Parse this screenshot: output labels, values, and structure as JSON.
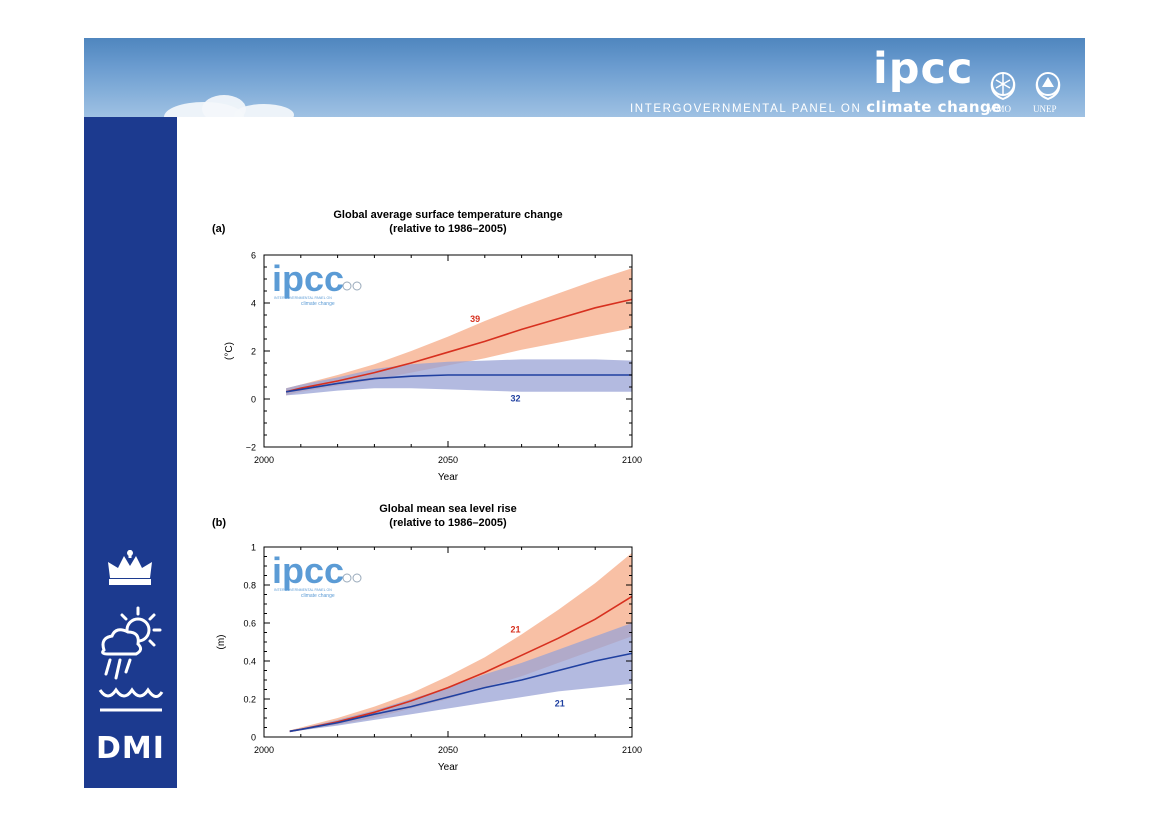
{
  "header": {
    "logo_text": "ipcc",
    "subtitle_small": "INTERGOVERNMENTAL PANEL ON",
    "subtitle_big": "climate change",
    "emblem_left_label": "WMO",
    "emblem_right_label": "UNEP"
  },
  "sidebar": {
    "logo_text": "DMI",
    "icons": [
      "crown-icon",
      "weather-icon",
      "waves-icon"
    ]
  },
  "watermark": {
    "logo_text": "ipcc",
    "subtitle_line1": "INTERGOVERNMENTAL PANEL ON",
    "subtitle_line2": "climate change"
  },
  "colors": {
    "banner": "#5b8fc7",
    "sidebar": "#1c3a8f",
    "red_line": "#d7301f",
    "red_band": "#f6b08f",
    "blue_line": "#2040a0",
    "blue_band": "#9aa3d6",
    "watermark": "#5b9bd5"
  },
  "chart_data": [
    {
      "type": "line",
      "panel_label": "(a)",
      "title": "Global average surface temperature change",
      "subtitle": "(relative to 1986–2005)",
      "xlabel": "Year",
      "ylabel": "(°C)",
      "xlim": [
        2000,
        2100
      ],
      "ylim": [
        -2,
        6
      ],
      "xticks": [
        2000,
        2050,
        2100
      ],
      "yticks": [
        -2,
        0,
        2,
        4,
        6
      ],
      "ytick_labels": [
        "−2",
        "0",
        "2",
        "4",
        "6"
      ],
      "x": [
        2006,
        2010,
        2020,
        2030,
        2040,
        2050,
        2060,
        2070,
        2080,
        2090,
        2100
      ],
      "series": [
        {
          "label": "39",
          "color": "#d7301f",
          "band_color": "#f6b08f",
          "mean": [
            0.3,
            0.45,
            0.75,
            1.1,
            1.5,
            1.95,
            2.4,
            2.9,
            3.35,
            3.8,
            4.15
          ],
          "upper": [
            0.45,
            0.6,
            1.0,
            1.45,
            2.0,
            2.6,
            3.25,
            3.85,
            4.4,
            4.95,
            5.45
          ],
          "lower": [
            0.15,
            0.3,
            0.55,
            0.8,
            1.1,
            1.4,
            1.7,
            2.05,
            2.35,
            2.65,
            2.95
          ]
        },
        {
          "label": "32",
          "color": "#2040a0",
          "band_color": "#9aa3d6",
          "mean": [
            0.3,
            0.4,
            0.65,
            0.85,
            0.95,
            1.0,
            1.0,
            1.0,
            1.0,
            1.0,
            1.0
          ],
          "upper": [
            0.45,
            0.6,
            0.9,
            1.25,
            1.45,
            1.55,
            1.6,
            1.65,
            1.65,
            1.65,
            1.6
          ],
          "lower": [
            0.15,
            0.2,
            0.35,
            0.45,
            0.45,
            0.4,
            0.35,
            0.3,
            0.3,
            0.3,
            0.3
          ]
        }
      ]
    },
    {
      "type": "line",
      "panel_label": "(b)",
      "title": "Global mean sea level rise",
      "subtitle": "(relative to 1986–2005)",
      "xlabel": "Year",
      "ylabel": "(m)",
      "xlim": [
        2000,
        2100
      ],
      "ylim": [
        0,
        1
      ],
      "xticks": [
        2000,
        2050,
        2100
      ],
      "yticks": [
        0,
        0.2,
        0.4,
        0.6,
        0.8,
        1
      ],
      "ytick_labels": [
        "0",
        "0.2",
        "0.4",
        "0.6",
        "0.8",
        "1"
      ],
      "x": [
        2007,
        2010,
        2020,
        2030,
        2040,
        2050,
        2060,
        2070,
        2080,
        2090,
        2100
      ],
      "series": [
        {
          "label": "21",
          "color": "#d7301f",
          "band_color": "#f6b08f",
          "mean": [
            0.03,
            0.04,
            0.08,
            0.13,
            0.19,
            0.26,
            0.34,
            0.43,
            0.52,
            0.62,
            0.74
          ],
          "upper": [
            0.035,
            0.05,
            0.1,
            0.16,
            0.23,
            0.32,
            0.42,
            0.54,
            0.67,
            0.81,
            0.97
          ],
          "lower": [
            0.025,
            0.035,
            0.065,
            0.1,
            0.15,
            0.2,
            0.26,
            0.32,
            0.39,
            0.46,
            0.53
          ]
        },
        {
          "label": "21",
          "color": "#2040a0",
          "band_color": "#9aa3d6",
          "mean": [
            0.03,
            0.04,
            0.075,
            0.12,
            0.16,
            0.21,
            0.26,
            0.3,
            0.35,
            0.4,
            0.44
          ],
          "upper": [
            0.035,
            0.045,
            0.09,
            0.14,
            0.2,
            0.26,
            0.33,
            0.39,
            0.46,
            0.53,
            0.6
          ],
          "lower": [
            0.025,
            0.035,
            0.06,
            0.09,
            0.12,
            0.15,
            0.18,
            0.21,
            0.24,
            0.26,
            0.28
          ]
        }
      ]
    }
  ]
}
